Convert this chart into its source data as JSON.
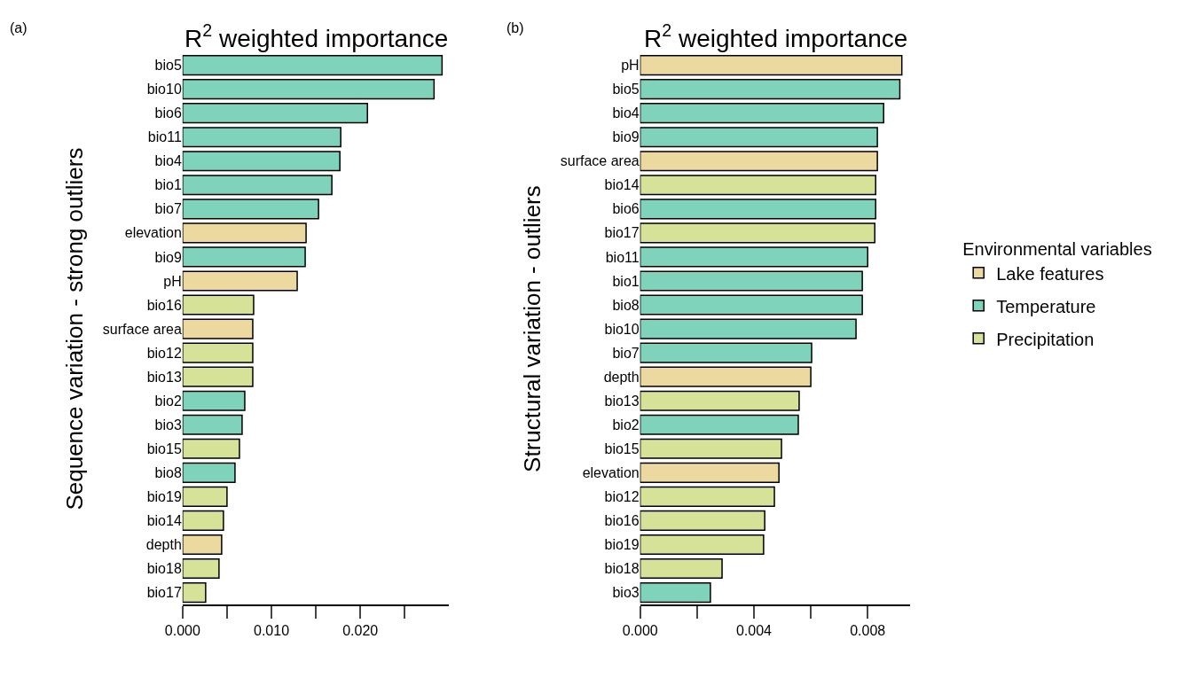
{
  "chart_data": [
    {
      "type": "bar",
      "orientation": "horizontal",
      "title": "R$^{2}$ weighted importance",
      "ylabel": "Sequence variation - strong outliers",
      "annotations": [
        "(a)"
      ],
      "categories": [
        "bio5",
        "bio10",
        "bio6",
        "bio11",
        "bio4",
        "bio1",
        "bio7",
        "elevation",
        "bio9",
        "pH",
        "bio16",
        "surface area",
        "bio12",
        "bio13",
        "bio2",
        "bio3",
        "bio15",
        "bio8",
        "bio19",
        "bio14",
        "depth",
        "bio18",
        "bio17"
      ],
      "series": [
        {
          "color": "#ecd9a0",
          "values": [
            null,
            null,
            null,
            null,
            null,
            null,
            null,
            0.0139,
            null,
            0.0129,
            null,
            0.0079,
            null,
            null,
            null,
            null,
            null,
            null,
            null,
            null,
            0.0044,
            null,
            null
          ]
        },
        {
          "color": "#7fd3bb",
          "values": [
            0.0292,
            0.0283,
            0.0208,
            0.0178,
            0.0177,
            0.0168,
            0.0153,
            null,
            0.0138,
            null,
            null,
            null,
            null,
            null,
            0.007,
            0.0067,
            null,
            0.0059,
            null,
            null,
            null,
            null,
            null
          ]
        },
        {
          "color": "#d5e297",
          "values": [
            null,
            null,
            null,
            null,
            null,
            null,
            null,
            null,
            null,
            null,
            0.008,
            null,
            0.0079,
            0.0079,
            null,
            null,
            0.0064,
            null,
            0.005,
            0.0046,
            null,
            0.0041,
            0.0026
          ]
        }
      ],
      "xlim": [
        0,
        0.03
      ],
      "xticks": [
        {
          "value": 0,
          "label": "0.000"
        },
        {
          "value": 0.005,
          "label": null
        },
        {
          "value": 0.01,
          "label": "0.010"
        },
        {
          "value": 0.015,
          "label": null
        },
        {
          "value": 0.02,
          "label": "0.020"
        },
        {
          "value": 0.025,
          "label": null
        }
      ]
    },
    {
      "type": "bar",
      "orientation": "horizontal",
      "title": "R$^{2}$ weighted importance",
      "ylabel": "Structural variation - outliers",
      "annotations": [
        "(b)"
      ],
      "legend_title": "Environmental variables",
      "categories": [
        "pH",
        "bio5",
        "bio4",
        "bio9",
        "surface area",
        "bio14",
        "bio6",
        "bio17",
        "bio11",
        "bio1",
        "bio8",
        "bio10",
        "bio7",
        "depth",
        "bio13",
        "bio2",
        "bio15",
        "elevation",
        "bio12",
        "bio16",
        "bio19",
        "bio18",
        "bio3"
      ],
      "series": [
        {
          "name": "Lake features",
          "color": "#ecd9a0",
          "values": [
            0.0092,
            null,
            null,
            null,
            0.00834,
            null,
            null,
            null,
            null,
            null,
            null,
            null,
            null,
            0.006,
            null,
            null,
            null,
            0.00488,
            null,
            null,
            null,
            null,
            null
          ]
        },
        {
          "name": "Temperature",
          "color": "#7fd3bb",
          "values": [
            null,
            0.00913,
            0.00856,
            0.00834,
            null,
            null,
            0.00828,
            null,
            0.008,
            0.00781,
            0.00781,
            0.00759,
            0.00603,
            null,
            null,
            0.00556,
            null,
            null,
            null,
            null,
            null,
            null,
            0.00247
          ]
        },
        {
          "name": "Precipitation",
          "color": "#d5e297",
          "values": [
            null,
            null,
            null,
            null,
            null,
            0.00828,
            null,
            0.00825,
            null,
            null,
            null,
            null,
            null,
            null,
            0.00559,
            null,
            0.00497,
            null,
            0.00472,
            0.00438,
            0.00434,
            0.00288,
            null
          ]
        }
      ],
      "xlim": [
        0,
        0.0095
      ],
      "xticks": [
        {
          "value": 0,
          "label": "0.000"
        },
        {
          "value": 0.002,
          "label": null
        },
        {
          "value": 0.004,
          "label": "0.004"
        },
        {
          "value": 0.006,
          "label": null
        },
        {
          "value": 0.008,
          "label": "0.008"
        }
      ],
      "legend": "right"
    }
  ]
}
